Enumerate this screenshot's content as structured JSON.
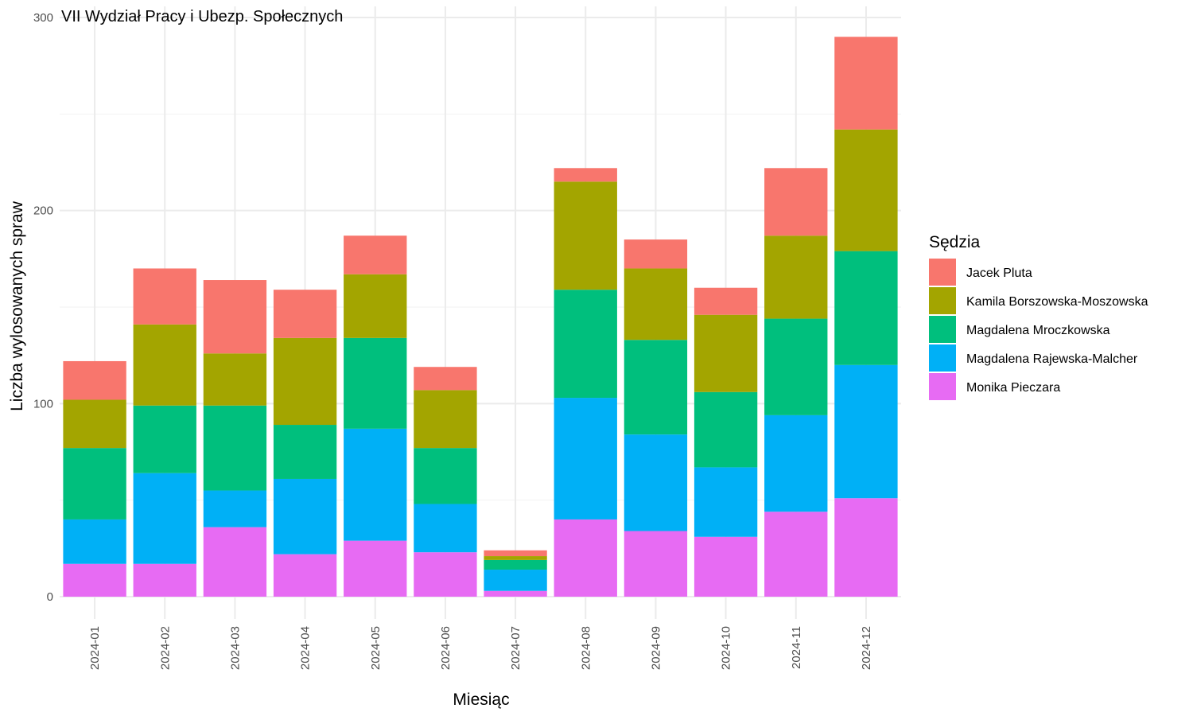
{
  "chart_data": {
    "type": "bar",
    "stacked": true,
    "title": "VII Wydział Pracy i Ubezp. Społecznych",
    "xlabel": "Miesiąc",
    "ylabel": "Liczba wylosowanych spraw",
    "ylim": [
      0,
      300
    ],
    "yticks": [
      0,
      100,
      200,
      300
    ],
    "grid": true,
    "legend_position": "right",
    "legend_title": "Sędzia",
    "categories": [
      "2024-01",
      "2024-02",
      "2024-03",
      "2024-04",
      "2024-05",
      "2024-06",
      "2024-07",
      "2024-08",
      "2024-09",
      "2024-10",
      "2024-11",
      "2024-12"
    ],
    "series": [
      {
        "name": "Jacek Pluta",
        "color": "#F8766D",
        "values": [
          20,
          29,
          38,
          25,
          20,
          12,
          3,
          7,
          15,
          14,
          35,
          48
        ]
      },
      {
        "name": "Kamila Borszowska-Moszowska",
        "color": "#A3A500",
        "values": [
          25,
          42,
          27,
          45,
          33,
          30,
          2,
          56,
          37,
          40,
          43,
          63
        ]
      },
      {
        "name": "Magdalena Mroczkowska",
        "color": "#00BF7D",
        "values": [
          37,
          35,
          44,
          28,
          47,
          29,
          5,
          56,
          49,
          39,
          50,
          59
        ]
      },
      {
        "name": "Magdalena Rajewska-Malcher",
        "color": "#00B0F6",
        "values": [
          23,
          47,
          19,
          39,
          58,
          25,
          11,
          63,
          50,
          36,
          50,
          69
        ]
      },
      {
        "name": "Monika Pieczara",
        "color": "#E76BF3",
        "values": [
          17,
          17,
          36,
          22,
          29,
          23,
          3,
          40,
          34,
          31,
          44,
          51
        ]
      }
    ]
  }
}
